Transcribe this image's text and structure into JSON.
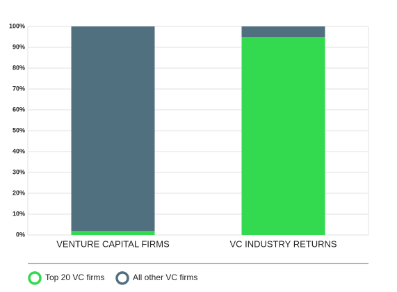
{
  "chart_data": {
    "type": "stacked_bar",
    "categories": [
      "VENTURE CAPITAL FIRMS",
      "VC INDUSTRY RETURNS"
    ],
    "series": [
      {
        "name": "Top 20 VC firms",
        "color": "#33d94f",
        "values": [
          2,
          95
        ]
      },
      {
        "name": "All other VC firms",
        "color": "#50707f",
        "values": [
          98,
          5
        ]
      }
    ],
    "ylim": [
      0,
      100
    ],
    "yticks": [
      {
        "value": 0,
        "label": "0%"
      },
      {
        "value": 10,
        "label": "10%"
      },
      {
        "value": 20,
        "label": "20%"
      },
      {
        "value": 30,
        "label": "30%"
      },
      {
        "value": 40,
        "label": "40%"
      },
      {
        "value": 50,
        "label": "50%"
      },
      {
        "value": 60,
        "label": "60%"
      },
      {
        "value": 70,
        "label": "70%"
      },
      {
        "value": 80,
        "label": "80%"
      },
      {
        "value": 90,
        "label": "90%"
      },
      {
        "value": 100,
        "label": "100%"
      }
    ],
    "grid": true,
    "legend": "bottom"
  }
}
